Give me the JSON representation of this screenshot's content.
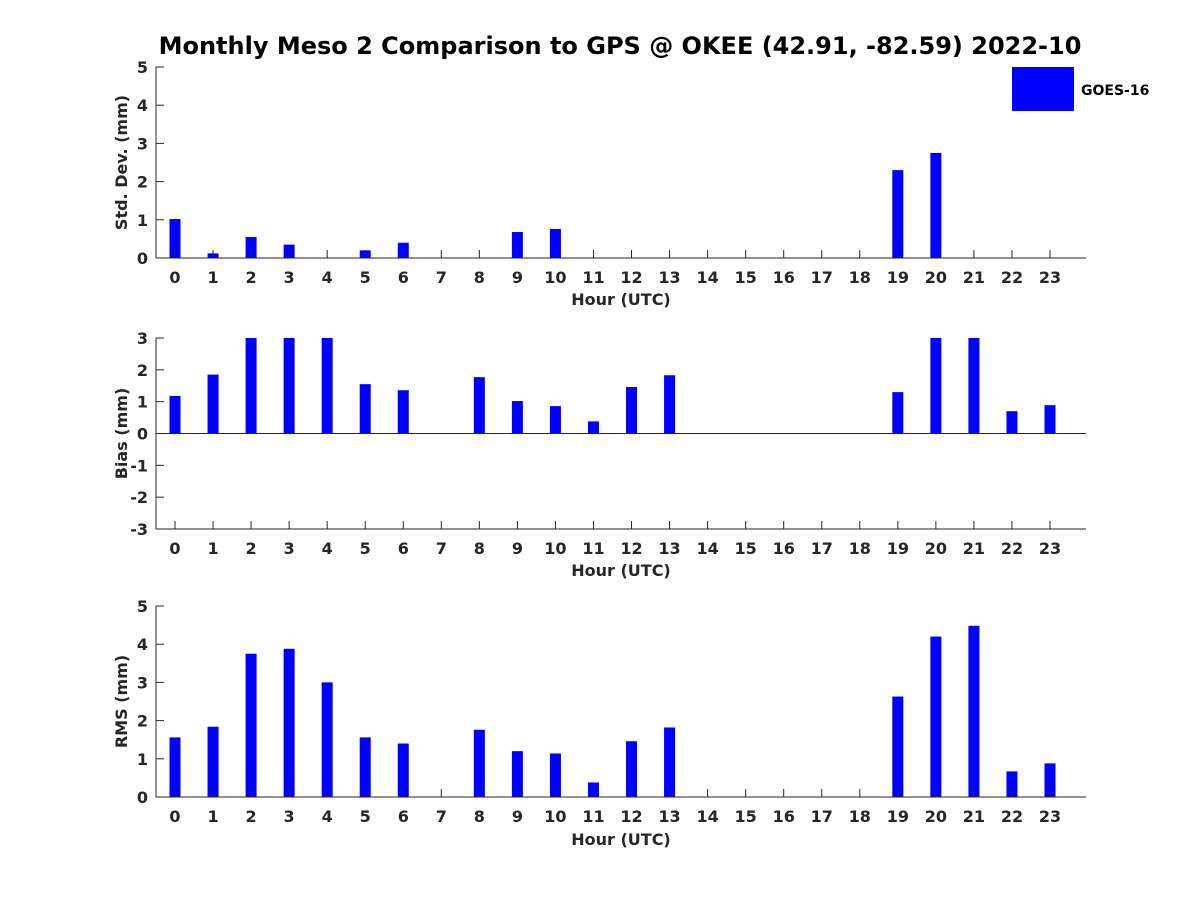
{
  "figure": {
    "title": "Monthly Meso 2 Comparison to GPS @ OKEE (42.91, -82.59) 2022-10",
    "bar_color": "#0000ff",
    "legend": {
      "label": "GOES-16",
      "placement": "top-right"
    }
  },
  "chart_data": [
    {
      "type": "bar",
      "xlabel": "Hour (UTC)",
      "ylabel": "Std. Dev. (mm)",
      "ylim": [
        0,
        5
      ],
      "yticks": [
        0,
        1,
        2,
        3,
        4,
        5
      ],
      "categories": [
        "0",
        "1",
        "2",
        "3",
        "4",
        "5",
        "6",
        "7",
        "8",
        "9",
        "10",
        "11",
        "12",
        "13",
        "14",
        "15",
        "16",
        "17",
        "18",
        "19",
        "20",
        "21",
        "22",
        "23"
      ],
      "series": [
        {
          "name": "GOES-16",
          "values": [
            1.02,
            0.12,
            0.55,
            0.35,
            0,
            0.2,
            0.4,
            0,
            0,
            0.68,
            0.76,
            0,
            0,
            0,
            0,
            0,
            0,
            0,
            0,
            2.3,
            2.75,
            0,
            0,
            0
          ]
        }
      ]
    },
    {
      "type": "bar",
      "xlabel": "Hour (UTC)",
      "ylabel": "Bias (mm)",
      "ylim": [
        -3,
        3
      ],
      "yticks": [
        -3,
        -2,
        -1,
        0,
        1,
        2,
        3
      ],
      "categories": [
        "0",
        "1",
        "2",
        "3",
        "4",
        "5",
        "6",
        "7",
        "8",
        "9",
        "10",
        "11",
        "12",
        "13",
        "14",
        "15",
        "16",
        "17",
        "18",
        "19",
        "20",
        "21",
        "22",
        "23"
      ],
      "series": [
        {
          "name": "GOES-16",
          "values": [
            1.18,
            1.85,
            3.0,
            3.0,
            3.0,
            1.55,
            1.36,
            0,
            1.77,
            1.02,
            0.86,
            0.38,
            1.46,
            1.83,
            0,
            0,
            0,
            0,
            0,
            1.3,
            3.0,
            3.0,
            0.7,
            0.89
          ]
        }
      ]
    },
    {
      "type": "bar",
      "xlabel": "Hour (UTC)",
      "ylabel": "RMS (mm)",
      "ylim": [
        0,
        5
      ],
      "yticks": [
        0,
        1,
        2,
        3,
        4,
        5
      ],
      "categories": [
        "0",
        "1",
        "2",
        "3",
        "4",
        "5",
        "6",
        "7",
        "8",
        "9",
        "10",
        "11",
        "12",
        "13",
        "14",
        "15",
        "16",
        "17",
        "18",
        "19",
        "20",
        "21",
        "22",
        "23"
      ],
      "series": [
        {
          "name": "GOES-16",
          "values": [
            1.56,
            1.84,
            3.75,
            3.88,
            3.0,
            1.56,
            1.4,
            0,
            1.76,
            1.2,
            1.14,
            0.38,
            1.46,
            1.82,
            0,
            0,
            0,
            0,
            0,
            2.63,
            4.2,
            4.48,
            0.67,
            0.88
          ]
        }
      ]
    }
  ]
}
